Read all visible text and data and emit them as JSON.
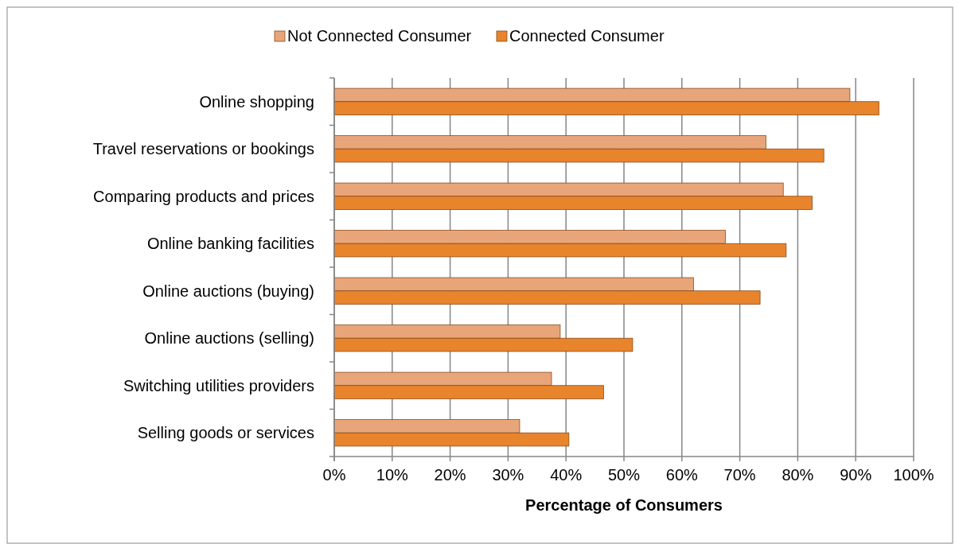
{
  "chart_data": {
    "type": "bar",
    "orientation": "horizontal",
    "categories": [
      "Online shopping",
      "Travel reservations or bookings",
      "Comparing products and prices",
      "Online banking facilities",
      "Online auctions (buying)",
      "Online auctions (selling)",
      "Switching utilities providers",
      "Selling goods or services"
    ],
    "series": [
      {
        "name": "Not Connected Consumer",
        "color": "#e9a57a",
        "values": [
          89,
          74.5,
          77.5,
          67.5,
          62,
          39,
          37.5,
          32
        ]
      },
      {
        "name": "Connected Consumer",
        "color": "#e8842c",
        "values": [
          94,
          84.5,
          82.5,
          78,
          73.5,
          51.5,
          46.5,
          40.5
        ]
      }
    ],
    "xlabel": "Percentage of Consumers",
    "xlim": [
      0,
      100
    ],
    "xticks": [
      {
        "value": 0,
        "label": "0%"
      },
      {
        "value": 10,
        "label": "10%"
      },
      {
        "value": 20,
        "label": "20%"
      },
      {
        "value": 30,
        "label": "30%"
      },
      {
        "value": 40,
        "label": "40%"
      },
      {
        "value": 50,
        "label": "50%"
      },
      {
        "value": 60,
        "label": "60%"
      },
      {
        "value": 70,
        "label": "70%"
      },
      {
        "value": 80,
        "label": "80%"
      },
      {
        "value": 90,
        "label": "90%"
      },
      {
        "value": 100,
        "label": "100%"
      }
    ],
    "grid": "x",
    "legend": "top"
  }
}
